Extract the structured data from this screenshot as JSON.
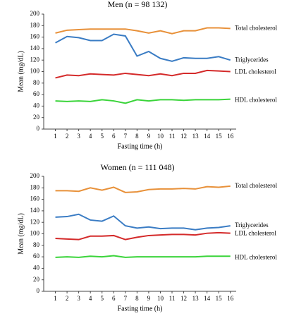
{
  "chart_data": [
    {
      "type": "line",
      "title": "Men (n = 98 132)",
      "xlabel": "Fasting time (h)",
      "ylabel": "Mean (mg/dL)",
      "x": [
        1,
        2,
        3,
        4,
        5,
        6,
        7,
        8,
        9,
        10,
        11,
        12,
        13,
        14,
        15,
        16
      ],
      "xlim": [
        0,
        16.5
      ],
      "xticks": [
        1,
        2,
        3,
        4,
        5,
        6,
        7,
        8,
        9,
        10,
        11,
        12,
        13,
        14,
        15,
        16
      ],
      "ylim": [
        0,
        200
      ],
      "yticks": [
        0,
        20,
        40,
        60,
        80,
        100,
        120,
        140,
        160,
        180,
        200
      ],
      "series": [
        {
          "name": "Total cholesterol",
          "color": "#e8913a",
          "values": [
            167,
            172,
            173,
            174,
            174,
            174,
            174,
            171,
            167,
            171,
            166,
            171,
            171,
            176,
            176,
            175
          ]
        },
        {
          "name": "Triglycerides",
          "color": "#3a7cc4",
          "values": [
            150,
            161,
            159,
            154,
            154,
            165,
            162,
            127,
            135,
            123,
            118,
            124,
            123,
            123,
            126,
            120
          ]
        },
        {
          "name": "LDL cholesterol",
          "color": "#d42a2a",
          "values": [
            89,
            94,
            93,
            96,
            95,
            94,
            97,
            95,
            93,
            96,
            93,
            97,
            97,
            102,
            101,
            100
          ]
        },
        {
          "name": "HDL cholesterol",
          "color": "#3ad43a",
          "values": [
            49,
            48,
            49,
            48,
            51,
            49,
            45,
            51,
            49,
            51,
            51,
            50,
            51,
            51,
            51,
            52
          ]
        }
      ]
    },
    {
      "type": "line",
      "title": "Women (n = 111 048)",
      "xlabel": "Fasting time (h)",
      "ylabel": "Mean (mg/dL)",
      "x": [
        1,
        2,
        3,
        4,
        5,
        6,
        7,
        8,
        9,
        10,
        11,
        12,
        13,
        14,
        15,
        16
      ],
      "xlim": [
        0,
        16.5
      ],
      "xticks": [
        1,
        2,
        3,
        4,
        5,
        6,
        7,
        8,
        9,
        10,
        11,
        12,
        13,
        14,
        15,
        16
      ],
      "ylim": [
        0,
        200
      ],
      "yticks": [
        0,
        20,
        40,
        60,
        80,
        100,
        120,
        140,
        160,
        180,
        200
      ],
      "series": [
        {
          "name": "Total cholesterol",
          "color": "#e8913a",
          "values": [
            175,
            175,
            174,
            180,
            176,
            181,
            172,
            173,
            177,
            178,
            178,
            179,
            178,
            182,
            181,
            183
          ]
        },
        {
          "name": "Triglycerides",
          "color": "#3a7cc4",
          "values": [
            129,
            130,
            134,
            124,
            122,
            131,
            114,
            110,
            112,
            109,
            110,
            110,
            107,
            110,
            111,
            114
          ]
        },
        {
          "name": "LDL cholesterol",
          "color": "#d42a2a",
          "values": [
            92,
            91,
            90,
            96,
            96,
            97,
            90,
            94,
            97,
            98,
            99,
            99,
            98,
            101,
            102,
            101
          ]
        },
        {
          "name": "HDL cholesterol",
          "color": "#3ad43a",
          "values": [
            59,
            60,
            59,
            61,
            60,
            62,
            59,
            60,
            60,
            60,
            60,
            60,
            60,
            61,
            61,
            61
          ]
        }
      ]
    }
  ]
}
